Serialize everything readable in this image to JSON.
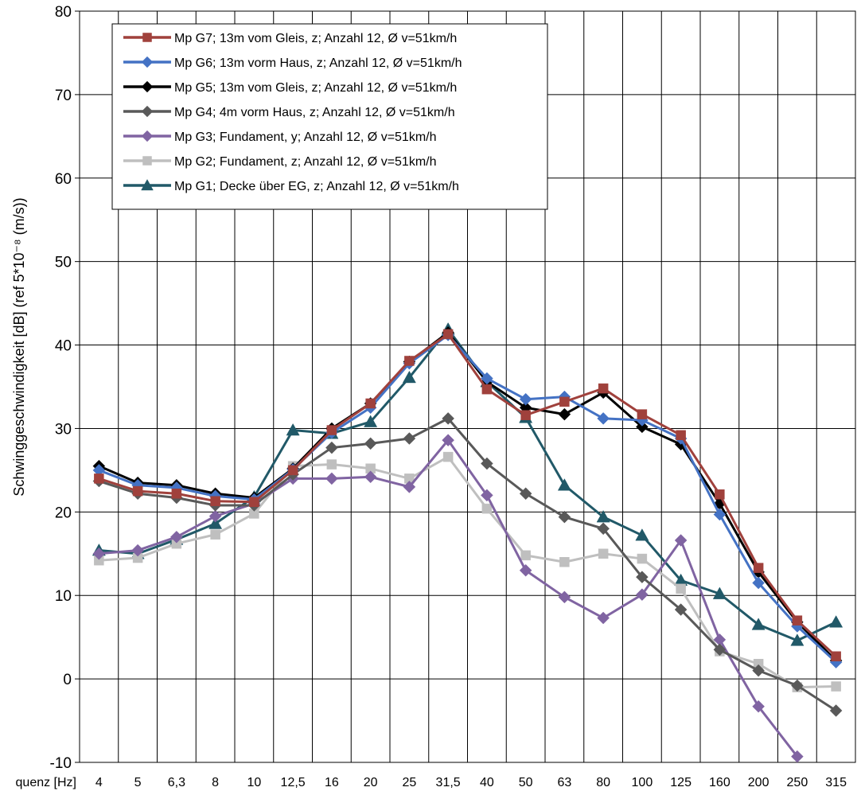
{
  "chart_data": {
    "type": "line",
    "title": "",
    "ylabel": "Schwinggeschwindigkeit  [dB] (ref 5*10⁻⁸ (m/s))",
    "xlabel": "Frequenz [Hz]",
    "xlabel_visible": "quenz [Hz]",
    "ylim": [
      -10,
      80
    ],
    "yticks": [
      -10,
      0,
      10,
      20,
      30,
      40,
      50,
      60,
      70,
      80
    ],
    "grid": true,
    "legend_position": "top-left",
    "categories": [
      "4",
      "5",
      "6,3",
      "8",
      "10",
      "12,5",
      "16",
      "20",
      "25",
      "31,5",
      "40",
      "50",
      "63",
      "80",
      "100",
      "125",
      "160",
      "200",
      "250",
      "315"
    ],
    "series": [
      {
        "name": "Mp G7; 13m vom Gleis, z; Anzahl 12, Ø v=51km/h",
        "color": "#A0413C",
        "marker": "square",
        "values": [
          24.0,
          22.5,
          22.2,
          21.3,
          21.2,
          25.0,
          29.8,
          33.0,
          38.1,
          41.3,
          34.7,
          31.6,
          33.2,
          34.8,
          31.7,
          29.2,
          22.1,
          13.3,
          7.0,
          2.7
        ]
      },
      {
        "name": "Mp G6; 13m vorm Haus, z; Anzahl 12, Ø v=51km/h",
        "color": "#4472C4",
        "marker": "diamond",
        "values": [
          25.0,
          23.2,
          22.9,
          21.9,
          21.5,
          25.1,
          29.5,
          32.5,
          37.8,
          41.2,
          36.0,
          33.5,
          33.8,
          31.2,
          31.0,
          28.8,
          19.7,
          11.5,
          6.3,
          2.0
        ]
      },
      {
        "name": "Mp G5; 13m vom Gleis, z; Anzahl 12, Ø v=51km/h",
        "color": "#000000",
        "marker": "diamond",
        "values": [
          25.5,
          23.5,
          23.2,
          22.2,
          21.7,
          25.2,
          30.0,
          33.0,
          38.0,
          41.5,
          35.6,
          32.5,
          31.7,
          34.3,
          30.2,
          28.1,
          21.0,
          12.8,
          6.8,
          2.2
        ]
      },
      {
        "name": "Mp G4; 4m vorm Haus, z; Anzahl 12, Ø v=51km/h",
        "color": "#595959",
        "marker": "diamond",
        "values": [
          23.7,
          22.2,
          21.7,
          20.8,
          20.8,
          24.5,
          27.7,
          28.2,
          28.8,
          31.2,
          25.8,
          22.2,
          19.4,
          18.0,
          12.2,
          8.3,
          3.5,
          1.0,
          -0.8,
          -3.8
        ]
      },
      {
        "name": "Mp G3; Fundament, y; Anzahl 12, Ø v=51km/h",
        "color": "#8064A2",
        "marker": "diamond",
        "values": [
          15.0,
          15.4,
          17.0,
          19.5,
          21.0,
          24.0,
          24.0,
          24.2,
          23.0,
          28.6,
          22.0,
          13.0,
          9.8,
          7.3,
          10.1,
          16.6,
          4.7,
          -3.3,
          -9.3,
          null
        ]
      },
      {
        "name": "Mp G2; Fundament, z; Anzahl 12, Ø v=51km/h",
        "color": "#BFBFBF",
        "marker": "square",
        "values": [
          14.2,
          14.5,
          16.2,
          17.3,
          19.8,
          25.5,
          25.7,
          25.2,
          24.0,
          26.6,
          20.4,
          14.8,
          14.0,
          15.0,
          14.4,
          10.8,
          3.3,
          1.8,
          -1.0,
          -0.9
        ]
      },
      {
        "name": "Mp G1; Decke über EG, z; Anzahl 12, Ø v=51km/h",
        "color": "#215968",
        "marker": "triangle",
        "values": [
          15.4,
          15.0,
          16.7,
          18.6,
          21.8,
          29.8,
          29.4,
          30.8,
          36.1,
          41.9,
          35.6,
          31.3,
          23.2,
          19.4,
          17.2,
          11.8,
          10.2,
          6.5,
          4.6,
          6.8
        ]
      }
    ]
  }
}
